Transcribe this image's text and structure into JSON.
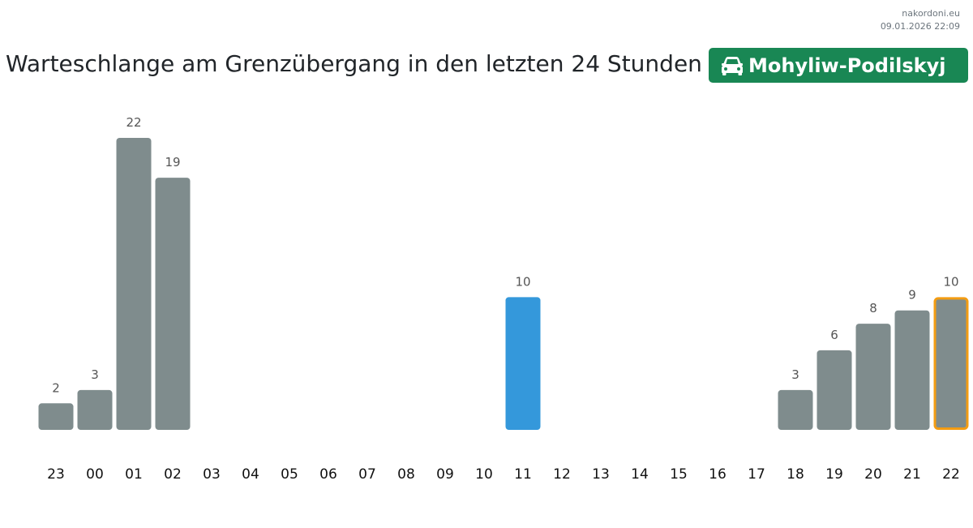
{
  "source": {
    "site": "nakordoni.eu",
    "timestamp": "09.01.2026 22:09"
  },
  "header": {
    "title": "Warteschlange am Grenzübergang in den letzten 24 Stunden",
    "badge_label": "Mohyliw-Podilskyj",
    "badge_icon": "car-icon",
    "badge_color": "#198754"
  },
  "colors": {
    "bar": "#7f8c8d",
    "bar_highlight": "#3498db",
    "bar_current_outline": "#f39c12",
    "label": "#555555",
    "tick": "#111111"
  },
  "chart_data": {
    "type": "bar",
    "categories": [
      "23",
      "00",
      "01",
      "02",
      "03",
      "04",
      "05",
      "06",
      "07",
      "08",
      "09",
      "10",
      "11",
      "12",
      "13",
      "14",
      "15",
      "16",
      "17",
      "18",
      "19",
      "20",
      "21",
      "22"
    ],
    "values": [
      2,
      3,
      22,
      19,
      null,
      null,
      null,
      null,
      null,
      null,
      null,
      null,
      10,
      null,
      null,
      null,
      null,
      null,
      null,
      3,
      6,
      8,
      9,
      10
    ],
    "highlighted_category": "11",
    "current_category": "22",
    "ylim": [
      0,
      22
    ],
    "grid": false,
    "title": "",
    "xlabel": "",
    "ylabel": ""
  }
}
